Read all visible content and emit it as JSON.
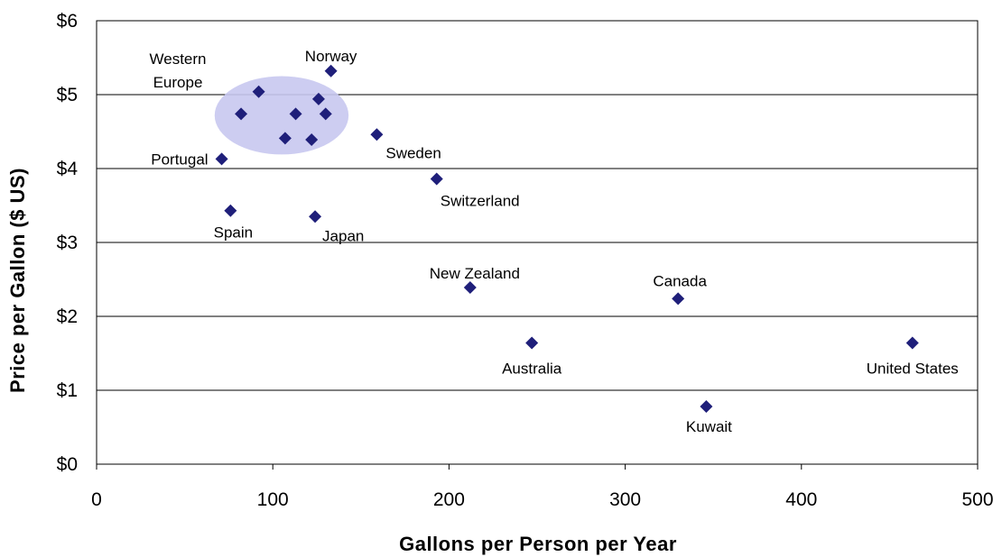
{
  "chart_data": {
    "type": "scatter",
    "title": "",
    "xlabel": "Gallons per Person per Year",
    "ylabel": "Price per Gallon ($ US)",
    "xlim": [
      0,
      500
    ],
    "ylim": [
      0,
      6
    ],
    "x_ticks": [
      0,
      100,
      200,
      300,
      400,
      500
    ],
    "x_tick_labels": [
      "0",
      "100",
      "200",
      "300",
      "400",
      "500"
    ],
    "y_ticks": [
      0,
      1,
      2,
      3,
      4,
      5,
      6
    ],
    "y_tick_labels": [
      "$0",
      "$1",
      "$2",
      "$3",
      "$4",
      "$5",
      "$6"
    ],
    "grid": "horizontal",
    "marker_color": "#1f1f7a",
    "highlight_color": "#c8c8f0",
    "highlight": {
      "label": "Western Europe",
      "cx": 105,
      "cy": 4.72,
      "rx": 38,
      "ry": 0.53
    },
    "points": [
      {
        "label": "Norway",
        "x": 133,
        "y": 5.32
      },
      {
        "label": "",
        "x": 92,
        "y": 5.04
      },
      {
        "label": "",
        "x": 126,
        "y": 4.94
      },
      {
        "label": "",
        "x": 82,
        "y": 4.74
      },
      {
        "label": "",
        "x": 113,
        "y": 4.74
      },
      {
        "label": "",
        "x": 130,
        "y": 4.74
      },
      {
        "label": "",
        "x": 107,
        "y": 4.41
      },
      {
        "label": "",
        "x": 122,
        "y": 4.39
      },
      {
        "label": "Sweden",
        "x": 159,
        "y": 4.46
      },
      {
        "label": "Portugal",
        "x": 71,
        "y": 4.13
      },
      {
        "label": "Switzerland",
        "x": 193,
        "y": 3.86
      },
      {
        "label": "Spain",
        "x": 76,
        "y": 3.43
      },
      {
        "label": "Japan",
        "x": 124,
        "y": 3.35
      },
      {
        "label": "New Zealand",
        "x": 212,
        "y": 2.39
      },
      {
        "label": "Canada",
        "x": 330,
        "y": 2.24
      },
      {
        "label": "Australia",
        "x": 247,
        "y": 1.64
      },
      {
        "label": "United States",
        "x": 463,
        "y": 1.64
      },
      {
        "label": "Kuwait",
        "x": 346,
        "y": 0.78
      }
    ]
  }
}
